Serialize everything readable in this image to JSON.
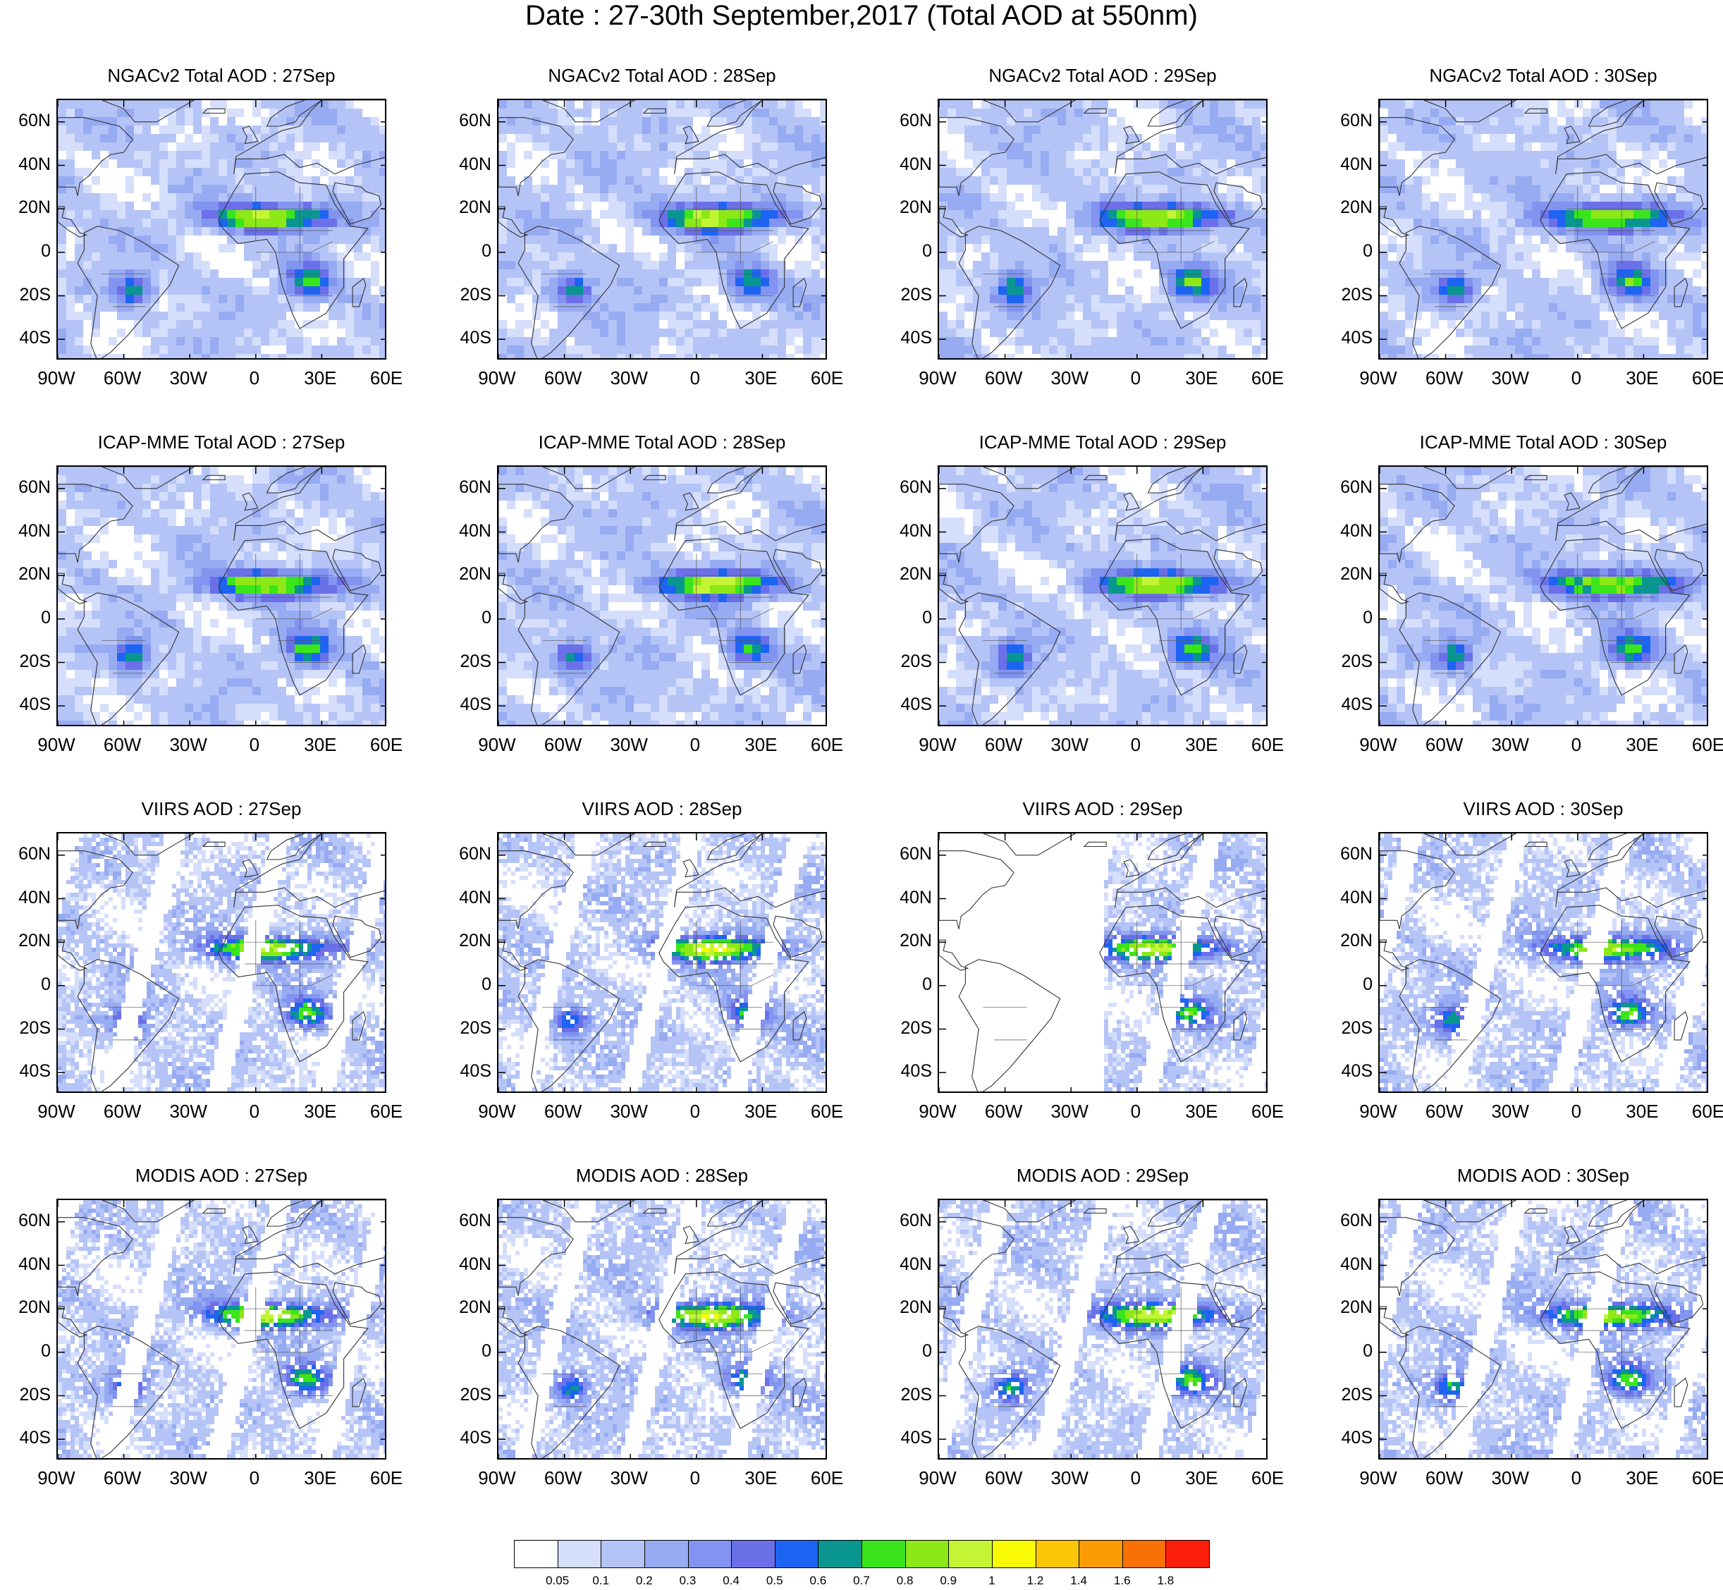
{
  "title": "Date : 27-30th September,2017 (Total AOD at 550nm)",
  "panels": [
    {
      "id": "ngac-27",
      "row": 0,
      "col": 0,
      "kind": "model",
      "title": "NGACv2 Total AOD : 27Sep"
    },
    {
      "id": "ngac-28",
      "row": 0,
      "col": 1,
      "kind": "model",
      "title": "NGACv2 Total AOD : 28Sep"
    },
    {
      "id": "ngac-29",
      "row": 0,
      "col": 2,
      "kind": "model",
      "title": "NGACv2 Total AOD : 29Sep"
    },
    {
      "id": "ngac-30",
      "row": 0,
      "col": 3,
      "kind": "model",
      "title": "NGACv2 Total AOD : 30Sep"
    },
    {
      "id": "icap-27",
      "row": 1,
      "col": 0,
      "kind": "model",
      "title": "ICAP-MME Total AOD : 27Sep"
    },
    {
      "id": "icap-28",
      "row": 1,
      "col": 1,
      "kind": "model",
      "title": "ICAP-MME Total AOD : 28Sep"
    },
    {
      "id": "icap-29",
      "row": 1,
      "col": 2,
      "kind": "model",
      "title": "ICAP-MME Total AOD : 29Sep"
    },
    {
      "id": "icap-30",
      "row": 1,
      "col": 3,
      "kind": "model",
      "title": "ICAP-MME Total AOD : 30Sep"
    },
    {
      "id": "viirs-27",
      "row": 2,
      "col": 0,
      "kind": "satellite",
      "title": "VIIRS AOD : 27Sep"
    },
    {
      "id": "viirs-28",
      "row": 2,
      "col": 1,
      "kind": "satellite",
      "title": "VIIRS AOD : 28Sep"
    },
    {
      "id": "viirs-29",
      "row": 2,
      "col": 2,
      "kind": "satellite-sparse",
      "title": "VIIRS AOD : 29Sep"
    },
    {
      "id": "viirs-30",
      "row": 2,
      "col": 3,
      "kind": "satellite",
      "title": "VIIRS AOD : 30Sep"
    },
    {
      "id": "modis-27",
      "row": 3,
      "col": 0,
      "kind": "satellite",
      "title": "MODIS AOD : 27Sep"
    },
    {
      "id": "modis-28",
      "row": 3,
      "col": 1,
      "kind": "satellite",
      "title": "MODIS AOD : 28Sep"
    },
    {
      "id": "modis-29",
      "row": 3,
      "col": 2,
      "kind": "satellite",
      "title": "MODIS AOD : 29Sep"
    },
    {
      "id": "modis-30",
      "row": 3,
      "col": 3,
      "kind": "satellite",
      "title": "MODIS AOD : 30Sep"
    }
  ],
  "lat_labels": [
    "60N",
    "40N",
    "20N",
    "0",
    "20S",
    "40S"
  ],
  "lat_values": [
    60,
    40,
    20,
    0,
    -20,
    -40
  ],
  "lon_labels": [
    "90W",
    "60W",
    "30W",
    "0",
    "30E",
    "60E"
  ],
  "lon_values": [
    -90,
    -60,
    -30,
    0,
    30,
    60
  ],
  "extent": {
    "lon": [
      -90,
      60
    ],
    "lat": [
      -50,
      70
    ]
  },
  "colorbar": {
    "labels": [
      "0.05",
      "0.1",
      "0.2",
      "0.3",
      "0.4",
      "0.5",
      "0.6",
      "0.7",
      "0.8",
      "0.9",
      "1",
      "1.2",
      "1.4",
      "1.6",
      "1.8"
    ],
    "colors": [
      "#ffffff",
      "#d5defb",
      "#b5c4f7",
      "#97abf2",
      "#8294f0",
      "#6b70e8",
      "#1e64f2",
      "#0a9690",
      "#3ae51b",
      "#8de818",
      "#c4f535",
      "#f8fb04",
      "#fbc606",
      "#fb9c06",
      "#f87006",
      "#fb1e0a"
    ]
  }
}
